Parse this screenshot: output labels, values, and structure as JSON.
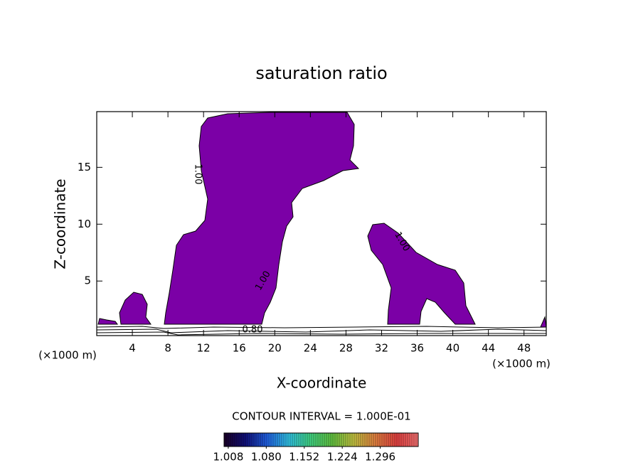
{
  "chart_data": {
    "type": "contour",
    "title": "saturation ratio",
    "x_label": "X-coordinate",
    "y_label": "Z-coordinate",
    "x_unit": "(×1000 m)",
    "xlim": [
      0,
      50.5
    ],
    "ylim": [
      0.2,
      19.9
    ],
    "xticks": [
      4,
      8,
      12,
      16,
      20,
      24,
      28,
      32,
      36,
      40,
      44,
      48
    ],
    "yticks": [
      5,
      10,
      15
    ],
    "region_color": "#7b00a6",
    "contour_labels": [
      "1.00",
      "1.00",
      "1.00",
      "0.80"
    ],
    "contour_interval_label": "CONTOUR INTERVAL = 1.000E-01",
    "colorbar_lim": [
      1.0,
      1.368
    ],
    "colorbar_colors": [
      "#1a0026",
      "#10107a",
      "#2060e0",
      "#30c0e0",
      "#40d080",
      "#60c040",
      "#c0c040",
      "#e08040",
      "#e04040",
      "#f07070"
    ],
    "colorbar_ticks": [
      1.008,
      {
        "value": 1.08,
        "label": "1.080"
      },
      1.152,
      1.224,
      1.296
    ]
  }
}
